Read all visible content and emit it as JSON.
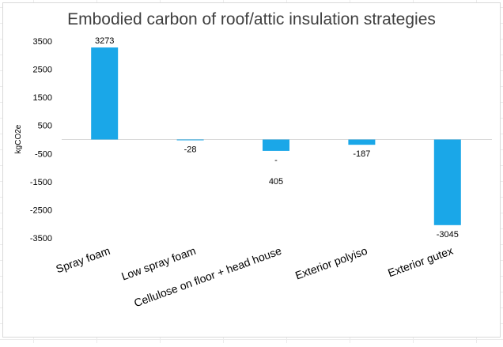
{
  "chart_data": {
    "type": "bar",
    "title": "Embodied carbon of roof/attic insulation strategies",
    "xlabel": "",
    "ylabel": "kgCO2e",
    "categories": [
      "Spray foam",
      "Low spray foam",
      "Cellulose on floor + head house",
      "Exterior polyiso",
      "Exterior gutex"
    ],
    "values": [
      3273,
      -28,
      -405,
      -187,
      -3045
    ],
    "data_labels": [
      [
        "3273"
      ],
      [
        "-28"
      ],
      [
        "-",
        "405"
      ],
      [
        "-187"
      ],
      [
        "-3045"
      ]
    ],
    "yticks": [
      3500,
      2500,
      1500,
      500,
      -500,
      -1500,
      -2500,
      -3500
    ],
    "ylim": [
      -3500,
      3500
    ],
    "grid": false,
    "legend": "none",
    "bar_color": "#1AA7E8",
    "text_color": "#000000",
    "title_color": "#404040"
  }
}
